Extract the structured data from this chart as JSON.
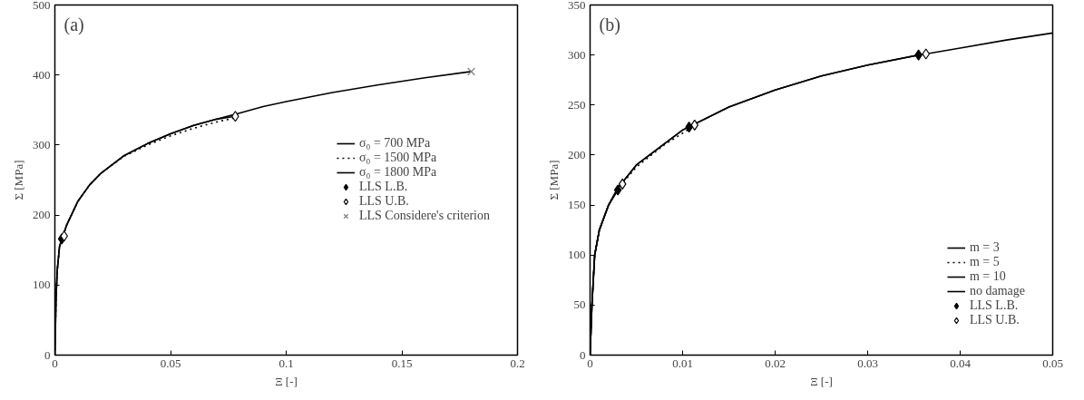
{
  "chart_data": [
    {
      "type": "line",
      "xlabel": "Ξ [-]",
      "ylabel": "Σ [MPa]",
      "annotations": [
        "(a)"
      ],
      "xlim": [
        0,
        0.2
      ],
      "ylim": [
        0,
        500
      ],
      "xticks": [
        0,
        0.05,
        0.1,
        0.15,
        0.2
      ],
      "yticks": [
        0,
        100,
        200,
        300,
        400,
        500
      ],
      "grid": false,
      "legend": "right",
      "series": [
        {
          "name": "σ₀ = 700 MPa",
          "color": "#000000",
          "line_style": "solid",
          "x": [
            0,
            0.0005,
            0.001,
            0.002,
            0.003,
            0.005,
            0.01,
            0.015,
            0.02,
            0.03,
            0.04,
            0.05,
            0.06,
            0.07,
            0.078
          ],
          "values": [
            0,
            80,
            120,
            155,
            165,
            185,
            220,
            243,
            260,
            285,
            302,
            316,
            328,
            337,
            341
          ]
        },
        {
          "name": "σ₀ = 1500 MPa",
          "color": "#000000",
          "line_style": "dotted",
          "x": [
            0,
            0.0005,
            0.001,
            0.002,
            0.003,
            0.005,
            0.01,
            0.015,
            0.02,
            0.03,
            0.04,
            0.05,
            0.06,
            0.07,
            0.077
          ],
          "values": [
            0,
            80,
            120,
            155,
            165,
            185,
            220,
            243,
            260,
            284,
            300,
            313,
            324,
            333,
            338
          ]
        },
        {
          "name": "σ₀ = 1800 MPa",
          "color": "#000000",
          "line_style": "solid",
          "x": [
            0,
            0.0005,
            0.001,
            0.002,
            0.003,
            0.005,
            0.01,
            0.015,
            0.02,
            0.03,
            0.04,
            0.05,
            0.06,
            0.07,
            0.078,
            0.09,
            0.1,
            0.12,
            0.14,
            0.16,
            0.18
          ],
          "values": [
            0,
            80,
            120,
            155,
            165,
            185,
            220,
            243,
            260,
            285,
            302,
            316,
            328,
            337,
            344,
            355,
            362,
            375,
            386,
            396,
            405
          ]
        },
        {
          "name": "LLS L.B.",
          "type": "scatter",
          "marker": "diamond",
          "color": "#000000",
          "x": [
            0.003
          ],
          "values": [
            166
          ]
        },
        {
          "name": "LLS U.B.",
          "type": "scatter",
          "marker": "diamond",
          "color": "#ffffff",
          "x": [
            0.004,
            0.078
          ],
          "values": [
            170,
            341
          ]
        },
        {
          "name": "LLS Considere's criterion",
          "type": "scatter",
          "marker": "cross",
          "color": "#808080",
          "x": [
            0.18
          ],
          "values": [
            405
          ]
        }
      ]
    },
    {
      "type": "line",
      "xlabel": "Ξ [-]",
      "ylabel": "Σ [MPa]",
      "annotations": [
        "(b)"
      ],
      "xlim": [
        0,
        0.05
      ],
      "ylim": [
        0,
        350
      ],
      "xticks": [
        0,
        0.01,
        0.02,
        0.03,
        0.04,
        0.05
      ],
      "yticks": [
        0,
        50,
        100,
        150,
        200,
        250,
        300,
        350
      ],
      "grid": false,
      "legend": "bottom right",
      "series": [
        {
          "name": "m = 3",
          "color": "#000000",
          "line_style": "solid",
          "x": [
            0,
            0.0002,
            0.0005,
            0.001,
            0.002,
            0.003
          ],
          "values": [
            0,
            50,
            100,
            125,
            150,
            165
          ]
        },
        {
          "name": "m = 5",
          "color": "#000000",
          "line_style": "dotted",
          "x": [
            0,
            0.0002,
            0.0005,
            0.001,
            0.002,
            0.003,
            0.005,
            0.008,
            0.0107
          ],
          "values": [
            0,
            50,
            100,
            125,
            150,
            166,
            188,
            210,
            226
          ]
        },
        {
          "name": "m = 10",
          "color": "#000000",
          "line_style": "solid",
          "x": [
            0,
            0.0002,
            0.0005,
            0.001,
            0.002,
            0.003,
            0.005,
            0.01,
            0.015,
            0.02,
            0.025,
            0.03,
            0.0355
          ],
          "values": [
            0,
            50,
            100,
            125,
            150,
            167,
            190,
            225,
            248,
            265,
            279,
            290,
            300
          ]
        },
        {
          "name": "no damage",
          "color": "#000000",
          "line_style": "solid",
          "x": [
            0,
            0.0002,
            0.0005,
            0.001,
            0.002,
            0.003,
            0.005,
            0.01,
            0.015,
            0.02,
            0.025,
            0.03,
            0.035,
            0.04,
            0.045,
            0.05
          ],
          "values": [
            0,
            50,
            100,
            125,
            150,
            167,
            190,
            225,
            248,
            265,
            279,
            290,
            299,
            307,
            315,
            322
          ]
        },
        {
          "name": "LLS L.B.",
          "type": "scatter",
          "marker": "diamond",
          "color": "#000000",
          "x": [
            0.003,
            0.0107,
            0.0355
          ],
          "values": [
            165,
            228,
            300
          ]
        },
        {
          "name": "LLS U.B.",
          "type": "scatter",
          "marker": "diamond",
          "color": "#ffffff",
          "x": [
            0.0035,
            0.0113,
            0.0363
          ],
          "values": [
            171,
            230,
            301
          ]
        }
      ]
    }
  ]
}
